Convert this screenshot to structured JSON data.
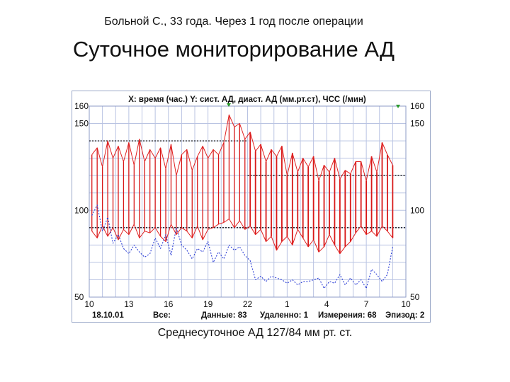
{
  "slide": {
    "patient_line": "Больной С., 33 года. Через 1 год после операции",
    "title": "Суточное мониторирование АД",
    "summary": "Среднесуточное АД 127/84 мм рт. ст."
  },
  "chart_data": {
    "type": "line",
    "header": "X: время (час.)  Y: сист. АД, диаст. АД (мм.рт.ст), ЧСС (/мин)",
    "ylim": [
      50,
      160
    ],
    "y_ticks_left": [
      "160",
      "150",
      "100",
      "50"
    ],
    "y_ticks_right": [
      "160",
      "150",
      "100",
      "50"
    ],
    "x_ticks": [
      "10",
      "13",
      "16",
      "19",
      "22",
      "1",
      "4",
      "7",
      "10"
    ],
    "footer": {
      "date": "18.10.01",
      "all": "Все:",
      "data": "Данные: 83",
      "removed": "Удаленно: 1",
      "measurements": "Измерения: 68",
      "episode": "Эпизод: 2"
    },
    "thresholds": [
      {
        "name": "",
        "from_hour": 10,
        "to_hour": 22,
        "value": 140
      },
      {
        "name": "",
        "from_hour": 22,
        "to_hour": 34,
        "value": 120
      },
      {
        "name": "",
        "from_hour": 10,
        "to_hour": 34,
        "value": 90
      }
    ],
    "series": [
      {
        "name": "",
        "kind": "systolic",
        "x": [
          10.2,
          10.6,
          11.0,
          11.4,
          11.8,
          12.2,
          12.6,
          13.0,
          13.4,
          13.8,
          14.2,
          14.6,
          15.0,
          15.4,
          15.8,
          16.2,
          16.6,
          17.0,
          17.4,
          17.8,
          18.2,
          18.6,
          19.0,
          19.4,
          19.8,
          20.2,
          20.6,
          21.0,
          21.4,
          21.8,
          22.2,
          22.6,
          23.0,
          23.4,
          23.8,
          24.2,
          24.6,
          25.0,
          25.4,
          25.8,
          26.2,
          26.6,
          27.0,
          27.4,
          27.8,
          28.2,
          28.6,
          29.0,
          29.4,
          29.8,
          30.2,
          30.6,
          31.0,
          31.4,
          31.8,
          32.2,
          32.6,
          33.0
        ],
        "y": [
          132,
          136,
          125,
          140,
          130,
          137,
          128,
          139,
          126,
          141,
          128,
          135,
          130,
          136,
          124,
          138,
          120,
          132,
          135,
          123,
          131,
          137,
          130,
          135,
          132,
          139,
          155,
          148,
          150,
          141,
          145,
          134,
          138,
          128,
          135,
          131,
          137,
          120,
          133,
          122,
          130,
          125,
          131,
          117,
          126,
          122,
          130,
          118,
          123,
          121,
          128,
          128,
          117,
          131,
          122,
          139,
          132,
          126
        ]
      },
      {
        "name": "",
        "kind": "diastolic",
        "x": [
          10.2,
          10.6,
          11.0,
          11.4,
          11.8,
          12.2,
          12.6,
          13.0,
          13.4,
          13.8,
          14.2,
          14.6,
          15.0,
          15.4,
          15.8,
          16.2,
          16.6,
          17.0,
          17.4,
          17.8,
          18.2,
          18.6,
          19.0,
          19.4,
          19.8,
          20.2,
          20.6,
          21.0,
          21.4,
          21.8,
          22.2,
          22.6,
          23.0,
          23.4,
          23.8,
          24.2,
          24.6,
          25.0,
          25.4,
          25.8,
          26.2,
          26.6,
          27.0,
          27.4,
          27.8,
          28.2,
          28.6,
          29.0,
          29.4,
          29.8,
          30.2,
          30.6,
          31.0,
          31.4,
          31.8,
          32.2,
          32.6,
          33.0
        ],
        "y": [
          88,
          84,
          91,
          85,
          90,
          83,
          89,
          86,
          92,
          84,
          88,
          87,
          90,
          85,
          82,
          92,
          86,
          90,
          88,
          84,
          91,
          83,
          89,
          90,
          92,
          93,
          95,
          90,
          94,
          89,
          91,
          86,
          89,
          82,
          85,
          77,
          82,
          85,
          80,
          89,
          84,
          79,
          83,
          76,
          79,
          86,
          80,
          75,
          79,
          82,
          87,
          91,
          86,
          88,
          85,
          91,
          88,
          84
        ]
      },
      {
        "name": "",
        "kind": "heart_rate",
        "x": [
          10.2,
          10.6,
          11.0,
          11.4,
          11.8,
          12.2,
          12.6,
          13.0,
          13.4,
          13.8,
          14.2,
          14.6,
          15.0,
          15.4,
          15.8,
          16.2,
          16.6,
          17.0,
          17.4,
          17.8,
          18.2,
          18.6,
          19.0,
          19.4,
          19.8,
          20.2,
          20.6,
          21.0,
          21.4,
          21.8,
          22.2,
          22.6,
          23.0,
          23.4,
          23.8,
          24.2,
          24.6,
          25.0,
          25.4,
          25.8,
          26.2,
          26.6,
          27.0,
          27.4,
          27.8,
          28.2,
          28.6,
          29.0,
          29.4,
          29.8,
          30.2,
          30.6,
          31.0,
          31.4,
          31.8,
          32.2,
          32.6,
          33.0
        ],
        "y": [
          97,
          103,
          88,
          96,
          81,
          86,
          78,
          75,
          80,
          76,
          73,
          75,
          84,
          78,
          86,
          74,
          90,
          80,
          77,
          72,
          78,
          76,
          82,
          70,
          76,
          72,
          80,
          77,
          79,
          74,
          71,
          60,
          62,
          59,
          62,
          61,
          60,
          58,
          60,
          57,
          59,
          59,
          60,
          61,
          55,
          59,
          58,
          63,
          57,
          61,
          57,
          60,
          55,
          66,
          63,
          59,
          63,
          79
        ]
      }
    ]
  }
}
